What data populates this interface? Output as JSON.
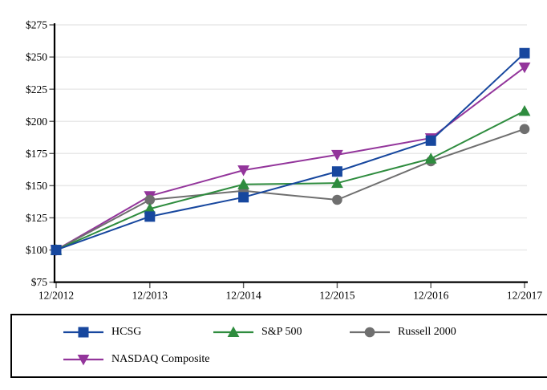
{
  "chart_data": {
    "type": "line",
    "title": "",
    "x": [
      "12/2012",
      "12/2013",
      "12/2014",
      "12/2015",
      "12/2016",
      "12/2017"
    ],
    "series": [
      {
        "name": "HCSG",
        "color": "#17479E",
        "marker": "square",
        "values": [
          100,
          126,
          141,
          161,
          185,
          253
        ]
      },
      {
        "name": "S&P 500",
        "color": "#2E8C3E",
        "marker": "triangle-up",
        "values": [
          100,
          132,
          151,
          152,
          171,
          208
        ]
      },
      {
        "name": "Russell 2000",
        "color": "#6F6F6F",
        "marker": "circle",
        "values": [
          100,
          139,
          146,
          139,
          169,
          194
        ]
      },
      {
        "name": "NASDAQ Composite",
        "color": "#93359B",
        "marker": "triangle-down",
        "values": [
          100,
          142,
          162,
          174,
          187,
          242
        ]
      }
    ],
    "ylim": [
      75,
      275
    ],
    "ytick_step": 25,
    "ytick_prefix": "$",
    "xlabel": "",
    "ylabel": "",
    "grid": "horizontal",
    "legend_position": "bottom-box"
  },
  "style": {
    "axis_color": "#000000",
    "grid_color": "#E9E9E9",
    "tick_color": "#5A5A5A",
    "text_color": "#000000",
    "legend_border_color": "#000000",
    "background": "#FFFFFF"
  }
}
